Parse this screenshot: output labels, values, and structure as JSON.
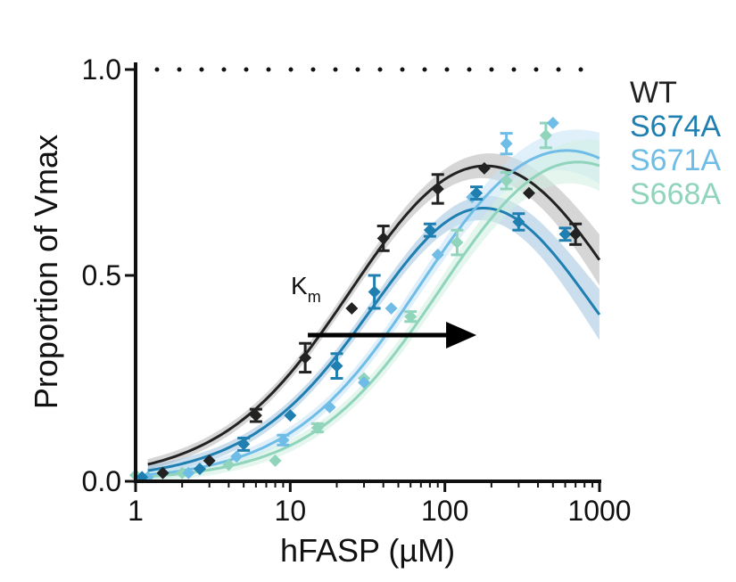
{
  "chart_data": {
    "type": "scatter",
    "title": "",
    "xlabel": "hFASP (µM)",
    "ylabel": "Proportion of Vmax",
    "xscale": "log",
    "xlim": [
      1,
      1000
    ],
    "ylim": [
      0,
      1.0
    ],
    "xticks": [
      1,
      10,
      100,
      1000
    ],
    "xtick_labels": [
      "1",
      "10",
      "100",
      "1000"
    ],
    "yticks": [
      0,
      0.5,
      1.0
    ],
    "ytick_labels": [
      "0.0",
      "0.5",
      "1.0"
    ],
    "reference_line": {
      "y": 1.0,
      "style": "dotted"
    },
    "legend": [
      "WT",
      "S674A",
      "S671A",
      "S668A"
    ],
    "legend_position": "right",
    "annotation": {
      "text": "K",
      "subscript": "m",
      "arrow_from_x": 13,
      "arrow_to_x": 160,
      "arrow_y": 0.355
    },
    "series": [
      {
        "name": "WT",
        "color": "#222222",
        "band_color": "#b5b5b5",
        "x": [
          1.5,
          3.0,
          6.0,
          12.5,
          25,
          40,
          90,
          180,
          350,
          700
        ],
        "y": [
          0.02,
          0.05,
          0.16,
          0.3,
          0.42,
          0.59,
          0.71,
          0.76,
          0.7,
          0.6
        ],
        "err": [
          0,
          0,
          0.015,
          0.035,
          0,
          0.03,
          0.035,
          0,
          0,
          0.025
        ],
        "fit": {
          "km": 28,
          "ki": 1200,
          "vmax": 1.0
        }
      },
      {
        "name": "S674A",
        "color": "#1e7fb0",
        "band_color": "#9fc3e0",
        "x": [
          1.1,
          2.6,
          5.0,
          10.0,
          20.0,
          35.0,
          80.0,
          160.0,
          300.0,
          600.0
        ],
        "y": [
          0.01,
          0.03,
          0.09,
          0.16,
          0.28,
          0.46,
          0.61,
          0.7,
          0.63,
          0.6
        ],
        "err": [
          0,
          0,
          0.015,
          0,
          0.03,
          0.04,
          0.015,
          0.015,
          0.02,
          0.015
        ],
        "fit": {
          "km": 45,
          "ki": 700,
          "vmax": 1.0
        }
      },
      {
        "name": "S671A",
        "color": "#6fbde6",
        "band_color": "#c6e4f5",
        "x": [
          1.2,
          2.2,
          4.5,
          9.0,
          18.0,
          30.0,
          45.0,
          90.0,
          150.0,
          250.0,
          500.0
        ],
        "y": [
          0.01,
          0.02,
          0.06,
          0.1,
          0.18,
          0.24,
          0.42,
          0.55,
          0.69,
          0.82,
          0.87
        ],
        "err": [
          0,
          0,
          0,
          0.012,
          0,
          0,
          0,
          0,
          0,
          0.025,
          0
        ],
        "fit": {
          "km": 75,
          "ki": 5000,
          "vmax": 1.0
        }
      },
      {
        "name": "S668A",
        "color": "#8fd4bb",
        "band_color": "#cfeee2",
        "x": [
          1.0,
          2.0,
          4.0,
          8.0,
          15.0,
          30.0,
          60.0,
          120.0,
          250.0,
          450.0
        ],
        "y": [
          0.015,
          0.02,
          0.04,
          0.05,
          0.13,
          0.25,
          0.4,
          0.58,
          0.73,
          0.84
        ],
        "err": [
          0,
          0,
          0,
          0,
          0.01,
          0,
          0.012,
          0.03,
          0.02,
          0.03
        ],
        "fit": {
          "km": 105,
          "ki": 5000,
          "vmax": 1.0
        }
      }
    ]
  }
}
